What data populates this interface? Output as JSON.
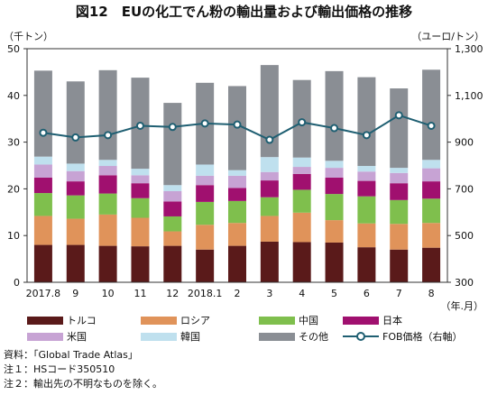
{
  "title": "図12　EUの化工でん粉の輸出量および輸出価格の推移",
  "left_unit": "（千トン）",
  "right_unit": "（ユーロ/トン）",
  "x_unit": "（年.月）",
  "colors": {
    "トルコ": "#5a1a1a",
    "ロシア": "#e0935a",
    "中国": "#7fbf4d",
    "日本": "#a0106f",
    "米国": "#c7a3d4",
    "韓国": "#bfe0ee",
    "その他": "#8a8e94",
    "FOB価格（右軸）": "#1f5f72"
  },
  "chart_data": {
    "type": "bar",
    "stacked": true,
    "categories": [
      "2017.8",
      "9",
      "10",
      "11",
      "12",
      "2018.1",
      "2",
      "3",
      "4",
      "5",
      "6",
      "7",
      "8"
    ],
    "series": [
      {
        "name": "トルコ",
        "values": [
          8.0,
          8.0,
          7.8,
          7.7,
          7.8,
          7.0,
          7.8,
          8.7,
          8.6,
          8.5,
          7.5,
          7.0,
          7.4
        ]
      },
      {
        "name": "ロシア",
        "values": [
          6.2,
          5.6,
          6.7,
          6.1,
          3.1,
          5.3,
          4.9,
          5.5,
          6.3,
          4.8,
          5.1,
          5.5,
          5.3
        ]
      },
      {
        "name": "中国",
        "values": [
          4.9,
          5.0,
          4.5,
          4.2,
          3.2,
          4.9,
          4.7,
          4.0,
          4.9,
          5.6,
          5.8,
          5.1,
          5.2
        ]
      },
      {
        "name": "日本",
        "values": [
          3.3,
          3.0,
          3.9,
          3.2,
          3.2,
          3.6,
          2.8,
          3.6,
          3.4,
          3.5,
          3.3,
          3.6,
          3.7
        ]
      },
      {
        "name": "米国",
        "values": [
          2.8,
          2.2,
          2.0,
          1.7,
          2.2,
          2.0,
          2.6,
          1.8,
          1.5,
          2.1,
          2.0,
          2.2,
          2.8
        ]
      },
      {
        "name": "韓国",
        "values": [
          1.7,
          1.6,
          1.3,
          1.4,
          1.3,
          2.4,
          1.2,
          3.2,
          2.0,
          1.5,
          1.2,
          1.1,
          1.8
        ]
      },
      {
        "name": "その他",
        "values": [
          18.4,
          17.6,
          19.2,
          19.5,
          17.6,
          17.5,
          18.0,
          19.7,
          16.6,
          19.2,
          19.0,
          17.0,
          19.3
        ]
      }
    ],
    "line": {
      "name": "FOB価格（右軸）",
      "values": [
        940,
        920,
        930,
        970,
        965,
        980,
        975,
        910,
        985,
        960,
        930,
        1015,
        970
      ]
    },
    "ylim_left": [
      0,
      50
    ],
    "yticks_left": [
      0,
      10,
      20,
      30,
      40,
      50
    ],
    "ylim_right": [
      300,
      1300
    ],
    "yticks_right": [
      "300",
      "500",
      "700",
      "900",
      "1,100",
      "1,300"
    ],
    "grid": false,
    "legend_position": "bottom"
  },
  "notes": [
    "資料：「Global Trade Atlas」",
    "注１：HSコード350510",
    "注２：輸出先の不明なものを除く。"
  ]
}
